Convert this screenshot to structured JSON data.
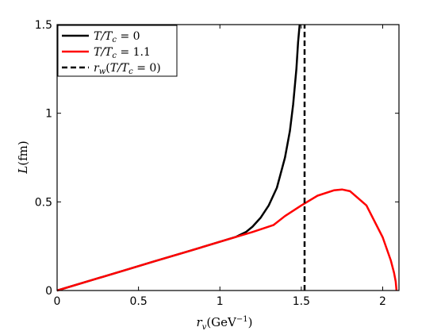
{
  "chart_data": {
    "type": "line",
    "xlabel": "r_v(GeV⁻¹)",
    "ylabel": "L(fm)",
    "xlim": [
      0,
      2.1
    ],
    "ylim": [
      0,
      1.5
    ],
    "x_ticks": [
      "0",
      "0.5",
      "1",
      "1.5",
      "2"
    ],
    "y_ticks": [
      "0",
      "0.5",
      "1",
      "1.5"
    ],
    "x_tick_values": [
      0,
      0.5,
      1,
      1.5,
      2
    ],
    "y_tick_values": [
      0,
      0.5,
      1,
      1.5
    ],
    "grid": false,
    "legend_position": "top-left",
    "legend": [
      "T/T_c = 0",
      "T/T_c = 1.1",
      "r_w(T/T_c = 0)"
    ],
    "series": [
      {
        "name": "T/T_c = 0",
        "color": "#000000",
        "style": "solid",
        "x": [
          0,
          0.2,
          0.4,
          0.6,
          0.8,
          1.0,
          1.1,
          1.16,
          1.2,
          1.25,
          1.3,
          1.35,
          1.4,
          1.43,
          1.45,
          1.47,
          1.48,
          1.49
        ],
        "y": [
          0,
          0.055,
          0.11,
          0.165,
          0.22,
          0.275,
          0.303,
          0.33,
          0.36,
          0.41,
          0.48,
          0.58,
          0.75,
          0.9,
          1.05,
          1.25,
          1.4,
          1.5
        ]
      },
      {
        "name": "T/T_c = 1.1",
        "color": "#ff0000",
        "style": "solid",
        "x": [
          0,
          0.2,
          0.4,
          0.6,
          0.8,
          1.0,
          1.2,
          1.33,
          1.4,
          1.5,
          1.6,
          1.7,
          1.75,
          1.8,
          1.9,
          2.0,
          2.05,
          2.07,
          2.08,
          2.085
        ],
        "y": [
          0,
          0.055,
          0.11,
          0.165,
          0.22,
          0.275,
          0.33,
          0.37,
          0.42,
          0.48,
          0.535,
          0.565,
          0.57,
          0.56,
          0.48,
          0.3,
          0.17,
          0.1,
          0.05,
          0
        ]
      },
      {
        "name": "r_w(T/T_c = 0)",
        "color": "#000000",
        "style": "dashed",
        "x": [
          1.52,
          1.52
        ],
        "y": [
          0,
          1.5
        ]
      }
    ]
  }
}
